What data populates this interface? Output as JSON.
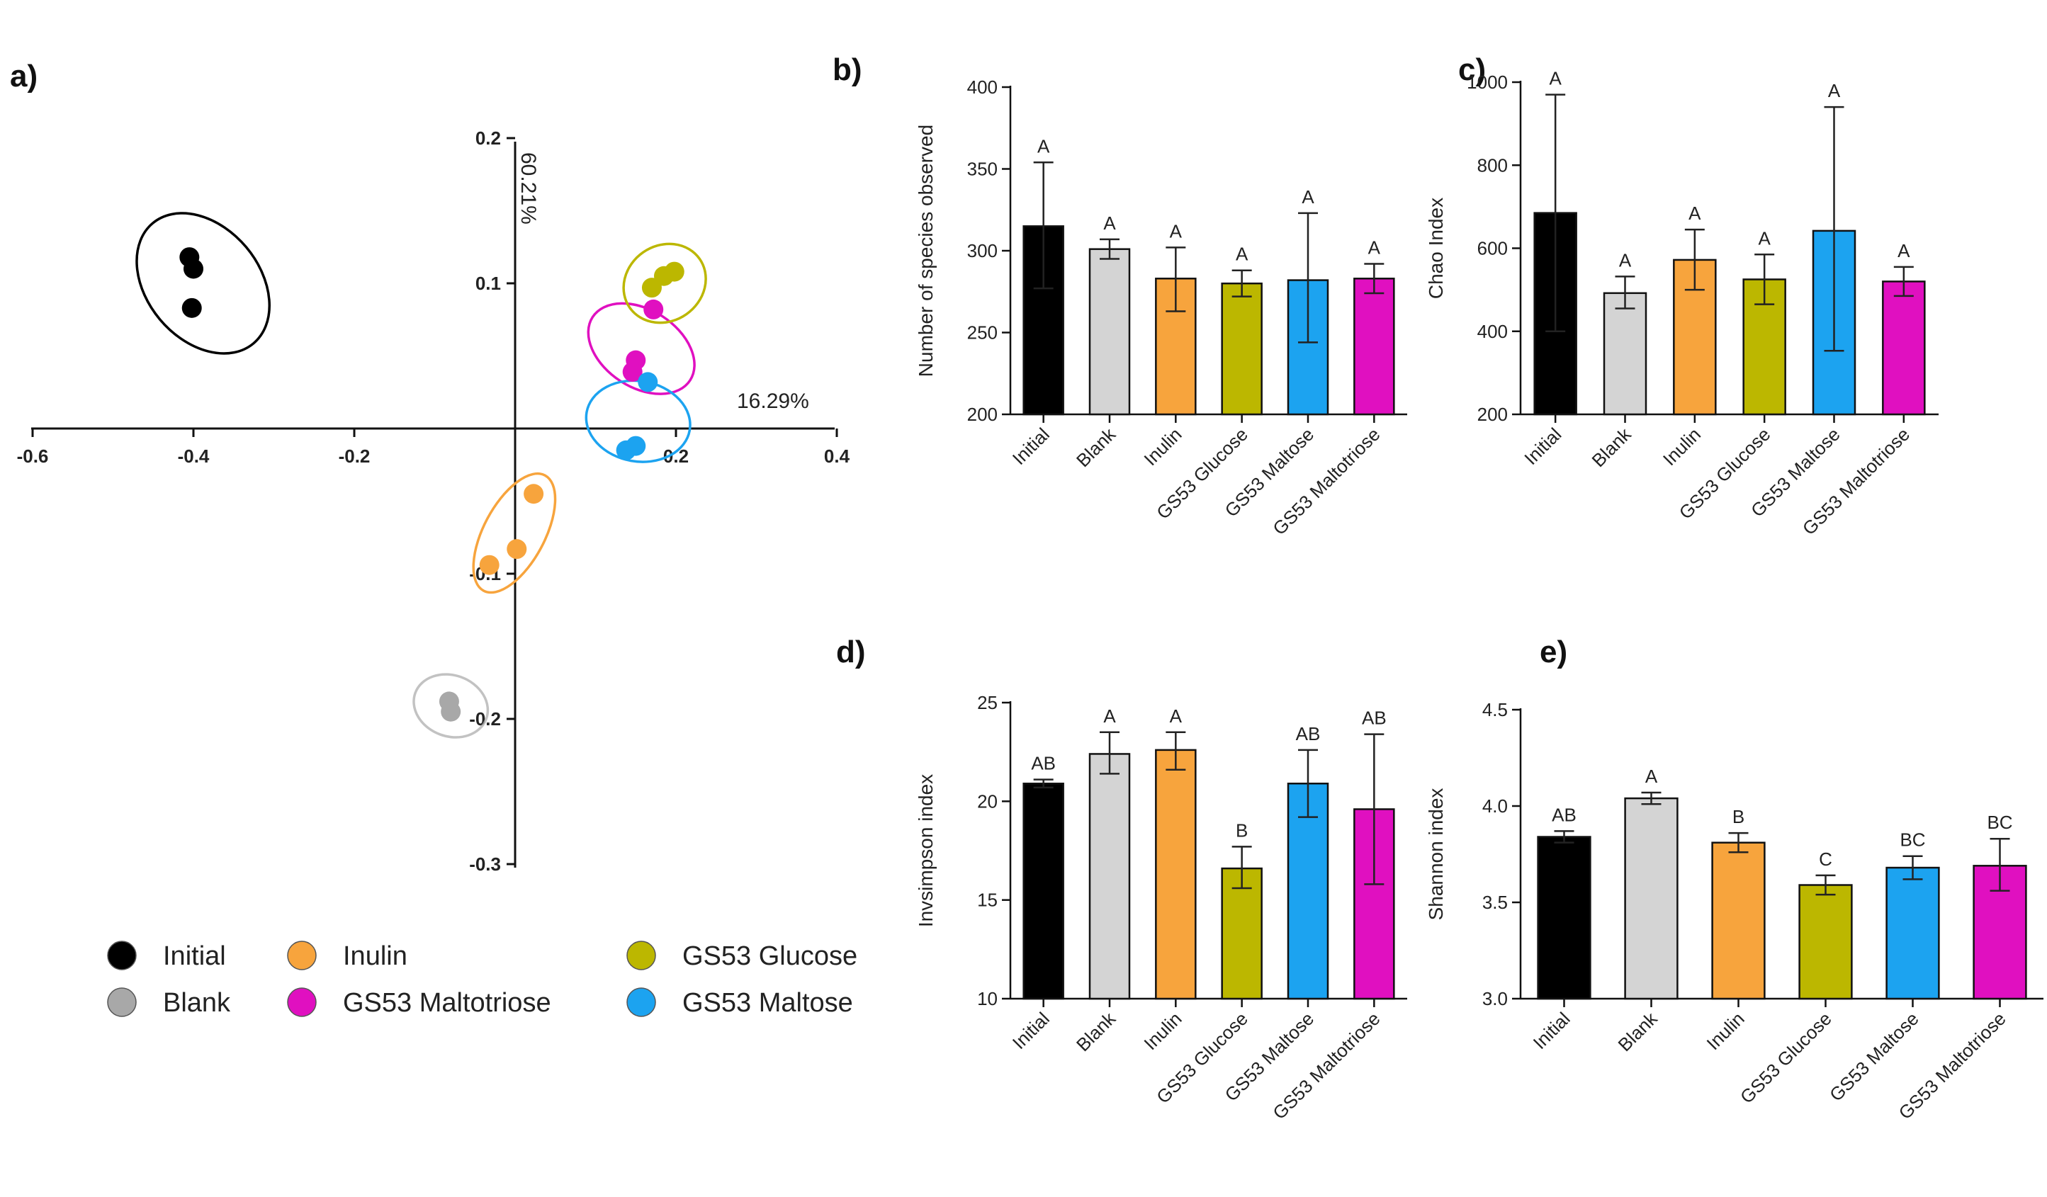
{
  "chart_data": [
    {
      "panel": "a)",
      "type": "scatter",
      "x_axis_label": "16.29%",
      "y_axis_label": "60.21%",
      "xlim": [
        -0.6,
        0.4
      ],
      "ylim": [
        -0.3,
        0.2
      ],
      "x_ticks": [
        -0.6,
        -0.4,
        -0.2,
        0.2,
        0.4
      ],
      "x_tick_labels": [
        "-0.6",
        "-0.4",
        "-0.2",
        "0.2",
        "0.4"
      ],
      "y_ticks": [
        0.2,
        0.1,
        -0.1,
        -0.2,
        -0.3
      ],
      "y_tick_labels": [
        "0.2",
        "0.1",
        "-0.1",
        "-0.2",
        "-0.3"
      ],
      "series": [
        {
          "name": "Initial",
          "color": "#000000",
          "points": [
            [
              -0.405,
              0.118
            ],
            [
              -0.4,
              0.11
            ],
            [
              -0.402,
              0.083
            ]
          ],
          "ellipse": {
            "cx": -0.388,
            "cy": 0.1,
            "rx": 0.07,
            "ry": 0.054,
            "angle": -40
          }
        },
        {
          "name": "Blank",
          "color": "#a8a8a8",
          "points": [
            [
              -0.082,
              -0.188
            ],
            [
              -0.08,
              -0.195
            ]
          ],
          "ellipse": {
            "cx": -0.08,
            "cy": -0.191,
            "rx": 0.038,
            "ry": 0.026,
            "angle": -70
          }
        },
        {
          "name": "Inulin",
          "color": "#f7a43d",
          "points": [
            [
              0.023,
              -0.045
            ],
            [
              0.002,
              -0.083
            ],
            [
              -0.032,
              -0.094
            ]
          ],
          "ellipse": {
            "cx": -0.001,
            "cy": -0.072,
            "rx": 0.038,
            "ry": 0.045,
            "angle": 28
          }
        },
        {
          "name": "GS53 Maltotriose",
          "color": "#e010c0",
          "points": [
            [
              0.15,
              0.047
            ],
            [
              0.146,
              0.039
            ],
            [
              0.172,
              0.082
            ]
          ],
          "ellipse": {
            "cx": 0.157,
            "cy": 0.055,
            "rx": 0.048,
            "ry": 0.04,
            "angle": -57
          }
        },
        {
          "name": "GS53 Glucose",
          "color": "#bcb700",
          "points": [
            [
              0.17,
              0.097
            ],
            [
              0.185,
              0.105
            ],
            [
              0.198,
              0.108
            ]
          ],
          "ellipse": {
            "cx": 0.186,
            "cy": 0.1,
            "rx": 0.053,
            "ry": 0.026,
            "angle": -35
          }
        },
        {
          "name": "GS53 Maltose",
          "color": "#1ca3f0",
          "points": [
            [
              0.165,
              0.032
            ],
            [
              0.138,
              -0.015
            ],
            [
              0.15,
              -0.012
            ]
          ],
          "ellipse": {
            "cx": 0.153,
            "cy": 0.005,
            "rx": 0.05,
            "ry": 0.036,
            "angle": -80
          }
        }
      ]
    },
    {
      "panel": "b)",
      "type": "bar",
      "ylabel": "Number of species observed",
      "categories": [
        "Initial",
        "Blank",
        "Inulin",
        "GS53 Glucose",
        "GS53 Maltose",
        "GS53 Maltotriose"
      ],
      "values": [
        315,
        301,
        283,
        280,
        282,
        283
      ],
      "errors": [
        [
          277,
          354
        ],
        [
          295,
          307
        ],
        [
          263,
          302
        ],
        [
          272,
          288
        ],
        [
          244,
          323
        ],
        [
          274,
          292
        ]
      ],
      "significance": [
        "A",
        "A",
        "A",
        "A",
        "A",
        "A"
      ],
      "ylim": [
        200,
        400
      ],
      "ticks": [
        200,
        250,
        300,
        350,
        400
      ]
    },
    {
      "panel": "c)",
      "type": "bar",
      "ylabel": "Chao Index",
      "categories": [
        "Initial",
        "Blank",
        "Inulin",
        "GS53 Glucose",
        "GS53 Maltose",
        "GS53 Maltotriose"
      ],
      "values": [
        685,
        492,
        572,
        525,
        642,
        520
      ],
      "errors": [
        [
          400,
          970
        ],
        [
          455,
          532
        ],
        [
          500,
          645
        ],
        [
          465,
          585
        ],
        [
          353,
          940
        ],
        [
          485,
          555
        ]
      ],
      "significance": [
        "A",
        "A",
        "A",
        "A",
        "A",
        "A"
      ],
      "ylim": [
        200,
        1000
      ],
      "ticks": [
        200,
        400,
        600,
        800,
        1000
      ]
    },
    {
      "panel": "d)",
      "type": "bar",
      "ylabel": "Invsimpson index",
      "categories": [
        "Initial",
        "Blank",
        "Inulin",
        "GS53 Glucose",
        "GS53 Maltose",
        "GS53 Maltotriose"
      ],
      "values": [
        20.9,
        22.4,
        22.6,
        16.6,
        20.9,
        19.6
      ],
      "errors": [
        [
          20.7,
          21.1
        ],
        [
          21.4,
          23.5
        ],
        [
          21.6,
          23.5
        ],
        [
          15.6,
          17.7
        ],
        [
          19.2,
          22.6
        ],
        [
          15.8,
          23.4
        ]
      ],
      "significance": [
        "AB",
        "A",
        "A",
        "B",
        "AB",
        "AB"
      ],
      "ylim": [
        10,
        25
      ],
      "ticks": [
        10,
        15,
        20,
        25
      ]
    },
    {
      "panel": "e)",
      "type": "bar",
      "ylabel": "Shannon index",
      "categories": [
        "Initial",
        "Blank",
        "Inulin",
        "GS53 Glucose",
        "GS53 Maltose",
        "GS53 Maltotriose"
      ],
      "values": [
        3.84,
        4.04,
        3.81,
        3.59,
        3.68,
        3.69
      ],
      "errors": [
        [
          3.81,
          3.87
        ],
        [
          4.01,
          4.07
        ],
        [
          3.76,
          3.86
        ],
        [
          3.54,
          3.64
        ],
        [
          3.62,
          3.74
        ],
        [
          3.56,
          3.83
        ]
      ],
      "significance": [
        "AB",
        "A",
        "B",
        "C",
        "BC",
        "BC"
      ],
      "ylim": [
        3.0,
        4.5
      ],
      "ticks": [
        3.0,
        3.5,
        4.0,
        4.5
      ],
      "tick_labels": [
        "3.0",
        "3.5",
        "4.0",
        "4.5"
      ]
    }
  ],
  "bar_colors": [
    "#000000",
    "#d4d4d4",
    "#f7a43d",
    "#bcb700",
    "#1ca3f0",
    "#e010c0"
  ],
  "legend": [
    {
      "label": "Initial",
      "color": "#000000"
    },
    {
      "label": "Inulin",
      "color": "#f7a43d"
    },
    {
      "label": "GS53 Glucose",
      "color": "#bcb700"
    },
    {
      "label": "Blank",
      "color": "#a8a8a8"
    },
    {
      "label": "GS53 Maltotriose",
      "color": "#e010c0"
    },
    {
      "label": "GS53 Maltose",
      "color": "#1ca3f0"
    }
  ]
}
